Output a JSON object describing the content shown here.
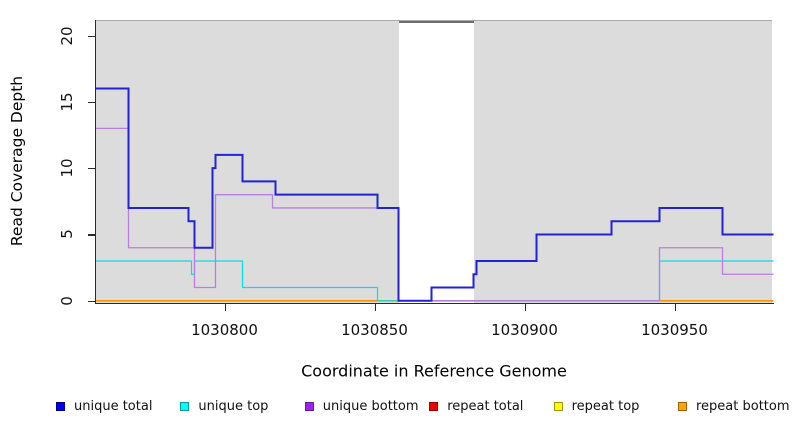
{
  "chart_data": {
    "type": "line",
    "subtype": "step-coverage",
    "title": "",
    "xlabel": "Coordinate in Reference Genome",
    "ylabel": "Read Coverage Depth",
    "xlim": [
      1030757,
      1030983
    ],
    "ylim": [
      0,
      21.2
    ],
    "x_ticks": [
      1030800,
      1030850,
      1030900,
      1030950
    ],
    "y_ticks": [
      0,
      5,
      10,
      15,
      20
    ],
    "grid": "off",
    "plot_background": "#dcdcdc",
    "mask_region": {
      "x_start": 1030858,
      "x_end": 1030883,
      "fill": "#ffffff"
    },
    "series": [
      {
        "name": "repeat total",
        "color": "#dd0000",
        "line_width": 1,
        "steps": [
          [
            1030757,
            0
          ]
        ]
      },
      {
        "name": "repeat top",
        "color": "#f0f000",
        "line_width": 1,
        "steps": [
          [
            1030757,
            0
          ]
        ]
      },
      {
        "name": "repeat bottom",
        "color": "#ff9400",
        "line_width": 1.6,
        "steps": [
          [
            1030757,
            0
          ]
        ]
      },
      {
        "name": "unique top",
        "color": "#00dfe8",
        "line_width": 1.2,
        "steps": [
          [
            1030757,
            3
          ],
          [
            1030789,
            2
          ],
          [
            1030790,
            3
          ],
          [
            1030806,
            1
          ],
          [
            1030851,
            0
          ],
          [
            1030945,
            3
          ]
        ]
      },
      {
        "name": "unique bottom",
        "color": "#bb7ce4",
        "line_width": 1.3,
        "steps": [
          [
            1030757,
            13
          ],
          [
            1030768,
            4
          ],
          [
            1030790,
            1
          ],
          [
            1030797,
            8
          ],
          [
            1030816,
            7
          ],
          [
            1030858,
            0
          ],
          [
            1030945,
            4
          ],
          [
            1030966,
            2
          ]
        ]
      },
      {
        "name": "unique total",
        "color": "#2222d8",
        "line_width": 2,
        "steps": [
          [
            1030757,
            16
          ],
          [
            1030768,
            7
          ],
          [
            1030788,
            6
          ],
          [
            1030790,
            4
          ],
          [
            1030796,
            10
          ],
          [
            1030797,
            11
          ],
          [
            1030806,
            9
          ],
          [
            1030817,
            8
          ],
          [
            1030851,
            7
          ],
          [
            1030858,
            0
          ],
          [
            1030869,
            1
          ],
          [
            1030883,
            2
          ],
          [
            1030884,
            3
          ],
          [
            1030904,
            5
          ],
          [
            1030929,
            6
          ],
          [
            1030945,
            7
          ],
          [
            1030966,
            5
          ]
        ]
      }
    ],
    "legend": {
      "position": "bottom",
      "items": [
        {
          "label": "unique total",
          "fill": "#0000ee",
          "border": "#000090"
        },
        {
          "label": "unique top",
          "fill": "#00ffff",
          "border": "#009aa0"
        },
        {
          "label": "unique bottom",
          "fill": "#a020f0",
          "border": "#6a1b9a"
        },
        {
          "label": "repeat total",
          "fill": "#ee0000",
          "border": "#900000"
        },
        {
          "label": "repeat top",
          "fill": "#ffff00",
          "border": "#9a9a00"
        },
        {
          "label": "repeat bottom",
          "fill": "#ffa500",
          "border": "#a06000"
        }
      ]
    }
  }
}
